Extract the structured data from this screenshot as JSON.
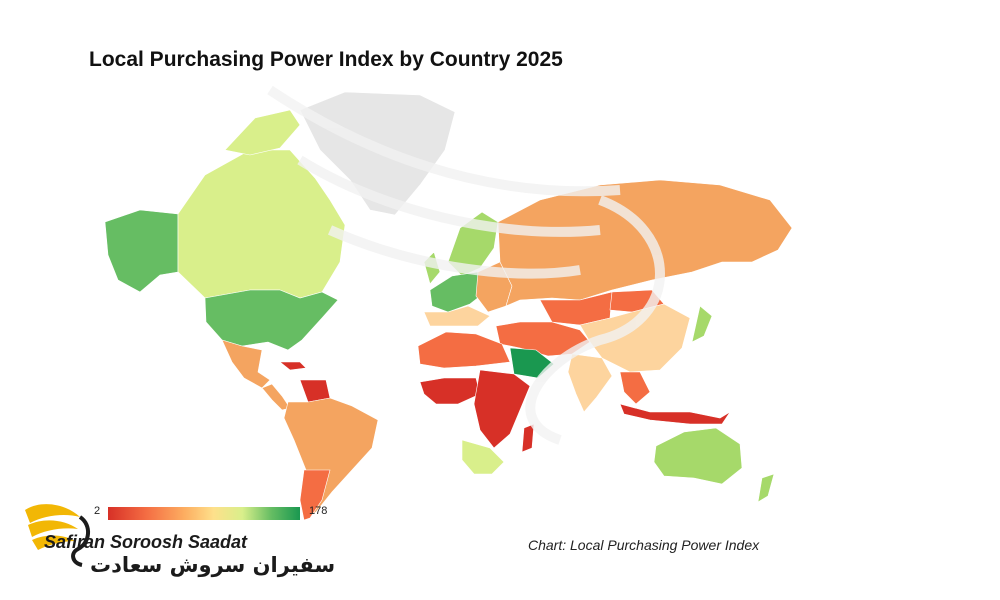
{
  "title": "Local Purchasing Power Index by Country 2025",
  "legend": {
    "min": "2",
    "max": "178",
    "colors": [
      "#d73027",
      "#f46d43",
      "#fdae61",
      "#fee08b",
      "#d9ef8b",
      "#a6d96a",
      "#66bd63",
      "#1a9850"
    ]
  },
  "source": "Chart: Local Purchasing Power Index",
  "brand": {
    "latin": "Safiran Soroosh Saadat",
    "persian": "سفیران سروش سعادت"
  },
  "colors": {
    "no_data": "#e6e6e6",
    "very_low": "#d73027",
    "low": "#f46d43",
    "mid_low": "#f4a460",
    "mid": "#fdd49e",
    "mid_high": "#d9ef8b",
    "high": "#a6d96a",
    "very_high": "#66bd63",
    "top": "#1a9850"
  }
}
